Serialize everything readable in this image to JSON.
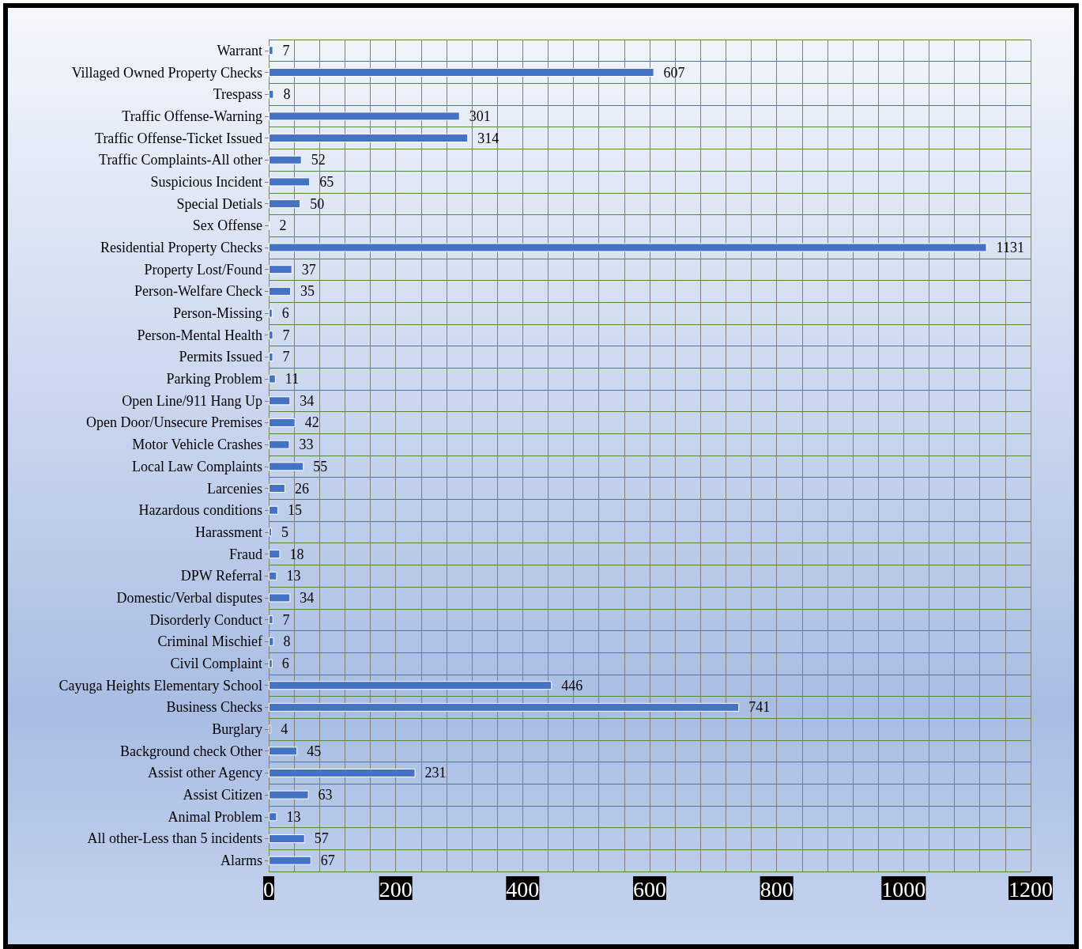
{
  "chart_data": {
    "type": "bar",
    "orientation": "horizontal",
    "color": "#4472c4",
    "data_labels": true,
    "grid": true,
    "categories": [
      "Warrant",
      "Villaged Owned Property Checks",
      "Trespass",
      "Traffic Offense-Warning",
      "Traffic Offense-Ticket Issued",
      "Traffic Complaints-All other",
      "Suspicious Incident",
      "Special Detials",
      "Sex Offense",
      "Residential Property Checks",
      "Property Lost/Found",
      "Person-Welfare Check",
      "Person-Missing",
      "Person-Mental Health",
      "Permits Issued",
      "Parking Problem",
      "Open Line/911 Hang Up",
      "Open Door/Unsecure Premises",
      "Motor Vehicle Crashes",
      "Local Law Complaints",
      "Larcenies",
      "Hazardous conditions",
      "Harassment",
      "Fraud",
      "DPW Referral",
      "Domestic/Verbal disputes",
      "Disorderly Conduct",
      "Criminal Mischief",
      "Civil Complaint",
      "Cayuga Heights Elementary School",
      "Business Checks",
      "Burglary",
      "Background check Other",
      "Assist other Agency",
      "Assist Citizen",
      "Animal Problem",
      "All other-Less than 5 incidents",
      "Alarms"
    ],
    "values": [
      7,
      607,
      8,
      301,
      314,
      52,
      65,
      50,
      2,
      1131,
      37,
      35,
      6,
      7,
      7,
      11,
      34,
      42,
      33,
      55,
      26,
      15,
      5,
      18,
      13,
      34,
      7,
      8,
      6,
      446,
      741,
      4,
      45,
      231,
      63,
      13,
      57,
      67
    ],
    "xlim": [
      0,
      1200
    ],
    "xticks": [
      0,
      200,
      400,
      600,
      800,
      1000,
      1200
    ]
  }
}
